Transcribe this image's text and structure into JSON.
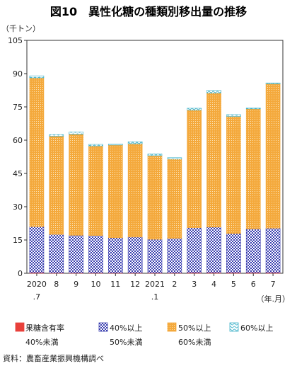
{
  "chart_data": {
    "type": "bar",
    "stacked": true,
    "title": "図10　異性化糖の種類別移出量の推移",
    "ylabel": "（千トン）",
    "xlabel": "（年.月）",
    "ylim": [
      0,
      105
    ],
    "yticks": [
      0,
      15,
      30,
      45,
      60,
      75,
      90,
      105
    ],
    "grid": false,
    "legend_position": "bottom",
    "categories": [
      {
        "label": "2020",
        "sub": ".7"
      },
      {
        "label": "8",
        "sub": ""
      },
      {
        "label": "9",
        "sub": ""
      },
      {
        "label": "10",
        "sub": ""
      },
      {
        "label": "11",
        "sub": ""
      },
      {
        "label": "12",
        "sub": ""
      },
      {
        "label": "2021",
        "sub": ".1"
      },
      {
        "label": "2",
        "sub": ""
      },
      {
        "label": "3",
        "sub": ""
      },
      {
        "label": "4",
        "sub": ""
      },
      {
        "label": "5",
        "sub": ""
      },
      {
        "label": "6",
        "sub": ""
      },
      {
        "label": "7",
        "sub": ""
      }
    ],
    "series": [
      {
        "name": "果糖含有率 40%未満",
        "name_lines": [
          "果糖含有率",
          "40%未満"
        ],
        "color": "#e8403a",
        "pattern": "solid",
        "values": [
          0.3,
          0.2,
          0.2,
          0.2,
          0.2,
          0.2,
          0.2,
          0.2,
          0.3,
          0.3,
          0.3,
          0.3,
          0.3
        ]
      },
      {
        "name": "40%以上 50%未満",
        "name_lines": [
          "40%以上",
          "50%未満"
        ],
        "color": "#3a3fb0",
        "pattern": "checker",
        "values": [
          20.7,
          17.3,
          16.9,
          16.8,
          15.8,
          16.1,
          15.1,
          15.5,
          20.2,
          20.5,
          17.6,
          19.7,
          20.0
        ]
      },
      {
        "name": "50%以上 60%未満",
        "name_lines": [
          "50%以上",
          "60%未満"
        ],
        "color": "#f4a93c",
        "pattern": "dots",
        "values": [
          67.1,
          44.3,
          45.6,
          40.4,
          41.8,
          42.1,
          37.7,
          35.8,
          53.1,
          60.5,
          52.8,
          54.1,
          65.1
        ]
      },
      {
        "name": "60%以上",
        "name_lines": [
          "60%以上"
        ],
        "color": "#3fb2c9",
        "pattern": "wave",
        "values": [
          0.9,
          0.7,
          1.0,
          0.7,
          0.5,
          0.9,
          0.8,
          0.6,
          0.8,
          1.2,
          0.8,
          0.4,
          0.4
        ]
      }
    ]
  },
  "source": "資料：農畜産業振興機構調べ"
}
